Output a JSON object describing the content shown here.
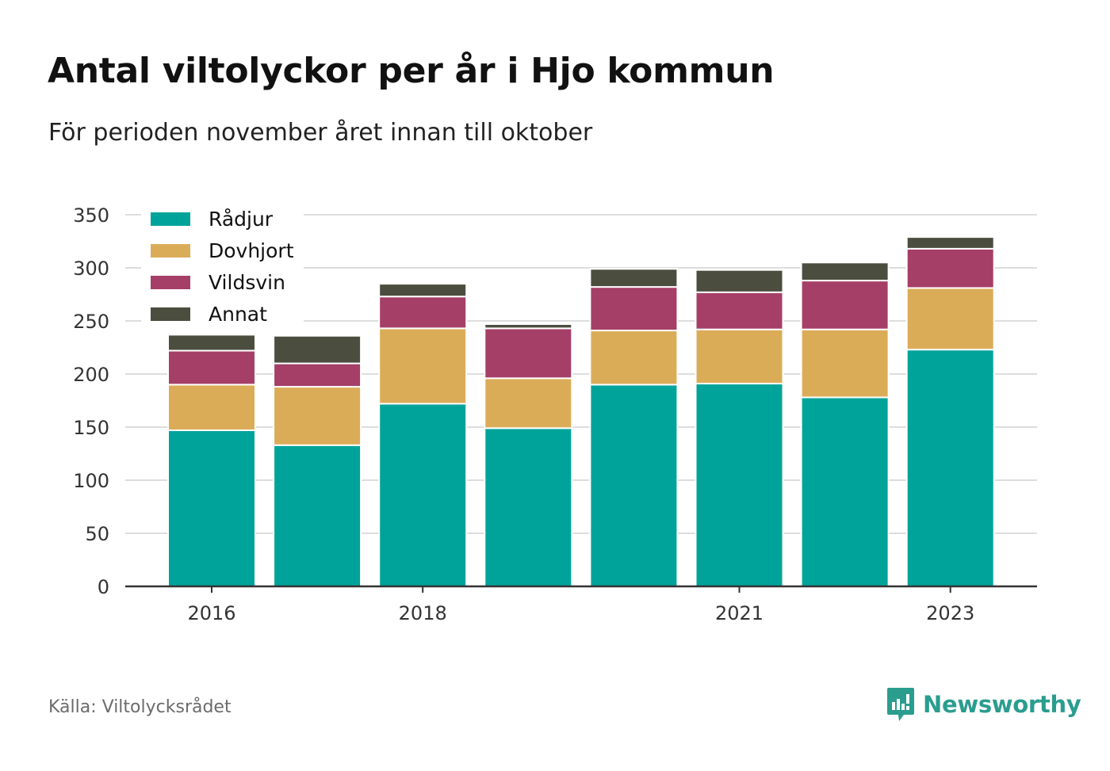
{
  "header": {
    "title": "Antal viltolyckor per år i Hjo kommun",
    "subtitle": "För perioden november året innan till oktober"
  },
  "footer": {
    "source": "Källa: Viltolycksrådet",
    "brand": "Newsworthy",
    "brand_icon": "bar-chart-speech-bubble-icon"
  },
  "colors": {
    "Rådjur": "#00a39a",
    "Dovhjort": "#dbac58",
    "Vildsvin": "#a53f67",
    "Annat": "#4b4e3e",
    "grid": "#dddddd",
    "axis": "#333333"
  },
  "chart_data": {
    "type": "bar",
    "stacked": true,
    "categories": [
      "2016",
      "2017",
      "2018",
      "2019",
      "2020",
      "2021",
      "2022",
      "2023"
    ],
    "xtick_labels": [
      "2016",
      "2018",
      "2021",
      "2023"
    ],
    "series": [
      {
        "name": "Rådjur",
        "values": [
          147,
          133,
          172,
          149,
          190,
          191,
          178,
          223
        ]
      },
      {
        "name": "Dovhjort",
        "values": [
          43,
          55,
          71,
          47,
          51,
          51,
          64,
          58
        ]
      },
      {
        "name": "Vildsvin",
        "values": [
          32,
          22,
          30,
          47,
          41,
          35,
          46,
          37
        ]
      },
      {
        "name": "Annat",
        "values": [
          15,
          26,
          12,
          4,
          17,
          21,
          17,
          11
        ]
      }
    ],
    "ylim": [
      0,
      350
    ],
    "yticks": [
      0,
      50,
      100,
      150,
      200,
      250,
      300,
      350
    ],
    "grid": true,
    "legend": "top-left",
    "xlabel": "",
    "ylabel": ""
  }
}
